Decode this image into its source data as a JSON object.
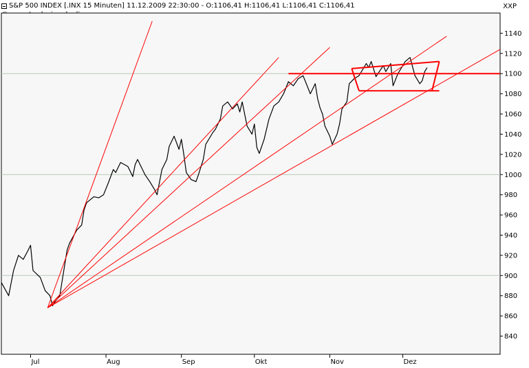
{
  "header": {
    "title": "S&P 500 INDEX [.INX  15 Minuten] 11.12.2009 22:30:00 - O:1106,41 H:1106,41 L:1106,41 C:1106,41",
    "copyright": "© www.tradesignalonline.com",
    "corner_label": "XXP"
  },
  "colors": {
    "price": "#000000",
    "trendlines": "#ff0000",
    "grid_highlight": "#b8c8b8",
    "plot_bg": "#f7f7f7"
  },
  "chart_data": {
    "type": "line",
    "title": "S&P 500 INDEX [.INX  15 Minuten] 11.12.2009 22:30:00 - O:1106,41 H:1106,41 L:1106,41 C:1106,41",
    "xlabel": "",
    "ylabel": "",
    "ylim": [
      822,
      1160
    ],
    "y_ticks": [
      840,
      860,
      880,
      900,
      920,
      940,
      960,
      980,
      1000,
      1020,
      1040,
      1060,
      1080,
      1100,
      1120,
      1140
    ],
    "highlight_levels": [
      900,
      1000,
      1100
    ],
    "x_ticks": [
      {
        "label": "Jul",
        "x": "2009-07-01"
      },
      {
        "label": "Aug",
        "x": "2009-08-01"
      },
      {
        "label": "Sep",
        "x": "2009-09-01"
      },
      {
        "label": "Okt",
        "x": "2009-10-01"
      },
      {
        "label": "Nov",
        "x": "2009-11-01"
      },
      {
        "label": "Dez",
        "x": "2009-12-01"
      }
    ],
    "xlim": [
      "2009-06-19",
      "2010-01-10"
    ],
    "series": [
      {
        "values": [
          [
            "2009-06-19",
            893
          ],
          [
            "2009-06-22",
            880
          ],
          [
            "2009-06-24",
            905
          ],
          [
            "2009-06-26",
            920
          ],
          [
            "2009-06-28",
            916
          ],
          [
            "2009-06-30",
            925
          ],
          [
            "2009-07-01",
            930
          ],
          [
            "2009-07-02",
            905
          ],
          [
            "2009-07-05",
            898
          ],
          [
            "2009-07-07",
            885
          ],
          [
            "2009-07-09",
            880
          ],
          [
            "2009-07-10",
            870
          ],
          [
            "2009-07-11",
            874
          ],
          [
            "2009-07-13",
            880
          ],
          [
            "2009-07-14",
            895
          ],
          [
            "2009-07-16",
            925
          ],
          [
            "2009-07-17",
            932
          ],
          [
            "2009-07-20",
            945
          ],
          [
            "2009-07-22",
            950
          ],
          [
            "2009-07-23",
            965
          ],
          [
            "2009-07-24",
            972
          ],
          [
            "2009-07-27",
            978
          ],
          [
            "2009-07-29",
            977
          ],
          [
            "2009-07-31",
            980
          ],
          [
            "2009-08-02",
            992
          ],
          [
            "2009-08-04",
            1005
          ],
          [
            "2009-08-05",
            1002
          ],
          [
            "2009-08-07",
            1012
          ],
          [
            "2009-08-10",
            1008
          ],
          [
            "2009-08-12",
            998
          ],
          [
            "2009-08-13",
            1010
          ],
          [
            "2009-08-14",
            1015
          ],
          [
            "2009-08-17",
            1000
          ],
          [
            "2009-08-19",
            993
          ],
          [
            "2009-08-21",
            985
          ],
          [
            "2009-08-22",
            980
          ],
          [
            "2009-08-24",
            1005
          ],
          [
            "2009-08-26",
            1015
          ],
          [
            "2009-08-27",
            1028
          ],
          [
            "2009-08-29",
            1038
          ],
          [
            "2009-08-31",
            1025
          ],
          [
            "2009-09-01",
            1035
          ],
          [
            "2009-09-02",
            1020
          ],
          [
            "2009-09-03",
            1002
          ],
          [
            "2009-09-05",
            995
          ],
          [
            "2009-09-07",
            993
          ],
          [
            "2009-09-08",
            1000
          ],
          [
            "2009-09-10",
            1015
          ],
          [
            "2009-09-11",
            1030
          ],
          [
            "2009-09-14",
            1042
          ],
          [
            "2009-09-15",
            1045
          ],
          [
            "2009-09-17",
            1055
          ],
          [
            "2009-09-18",
            1068
          ],
          [
            "2009-09-20",
            1072
          ],
          [
            "2009-09-22",
            1065
          ],
          [
            "2009-09-24",
            1070
          ],
          [
            "2009-09-25",
            1062
          ],
          [
            "2009-09-26",
            1072
          ],
          [
            "2009-09-28",
            1048
          ],
          [
            "2009-09-30",
            1040
          ],
          [
            "2009-10-01",
            1050
          ],
          [
            "2009-10-02",
            1027
          ],
          [
            "2009-10-03",
            1021
          ],
          [
            "2009-10-05",
            1035
          ],
          [
            "2009-10-07",
            1055
          ],
          [
            "2009-10-09",
            1068
          ],
          [
            "2009-10-11",
            1072
          ],
          [
            "2009-10-13",
            1080
          ],
          [
            "2009-10-15",
            1092
          ],
          [
            "2009-10-17",
            1088
          ],
          [
            "2009-10-19",
            1095
          ],
          [
            "2009-10-21",
            1098
          ],
          [
            "2009-10-22",
            1092
          ],
          [
            "2009-10-24",
            1080
          ],
          [
            "2009-10-26",
            1090
          ],
          [
            "2009-10-27",
            1075
          ],
          [
            "2009-10-28",
            1066
          ],
          [
            "2009-10-29",
            1060
          ],
          [
            "2009-10-30",
            1048
          ],
          [
            "2009-11-01",
            1038
          ],
          [
            "2009-11-02",
            1030
          ],
          [
            "2009-11-04",
            1040
          ],
          [
            "2009-11-05",
            1050
          ],
          [
            "2009-11-06",
            1065
          ],
          [
            "2009-11-08",
            1072
          ],
          [
            "2009-11-09",
            1090
          ],
          [
            "2009-11-11",
            1095
          ],
          [
            "2009-11-13",
            1098
          ],
          [
            "2009-11-16",
            1110
          ],
          [
            "2009-11-17",
            1106
          ],
          [
            "2009-11-18",
            1112
          ],
          [
            "2009-11-20",
            1097
          ],
          [
            "2009-11-23",
            1108
          ],
          [
            "2009-11-24",
            1102
          ],
          [
            "2009-11-26",
            1110
          ],
          [
            "2009-11-27",
            1088
          ],
          [
            "2009-11-29",
            1100
          ],
          [
            "2009-12-01",
            1108
          ],
          [
            "2009-12-02",
            1112
          ],
          [
            "2009-12-04",
            1116
          ],
          [
            "2009-12-06",
            1098
          ],
          [
            "2009-12-08",
            1090
          ],
          [
            "2009-12-09",
            1093
          ],
          [
            "2009-12-10",
            1102
          ],
          [
            "2009-12-11",
            1106
          ]
        ]
      }
    ],
    "drawn_lines": [
      {
        "name": "fan-1",
        "from": [
          "2009-07-08",
          868
        ],
        "to": [
          "2009-08-20",
          1152
        ]
      },
      {
        "name": "fan-2",
        "from": [
          "2009-07-08",
          868
        ],
        "to": [
          "2009-10-11",
          1116
        ]
      },
      {
        "name": "fan-3",
        "from": [
          "2009-07-08",
          868
        ],
        "to": [
          "2009-11-01",
          1126
        ]
      },
      {
        "name": "fan-4",
        "from": [
          "2009-07-08",
          868
        ],
        "to": [
          "2009-12-19",
          1137
        ]
      },
      {
        "name": "fan-5",
        "from": [
          "2009-07-08",
          868
        ],
        "to": [
          "2010-01-10",
          1124
        ]
      },
      {
        "name": "resistance-1100",
        "from": [
          "2009-10-15",
          1100
        ],
        "to": [
          "2010-01-10",
          1100
        ]
      },
      {
        "name": "box-top",
        "from": [
          "2009-11-10",
          1105
        ],
        "to": [
          "2009-12-16",
          1112
        ]
      },
      {
        "name": "box-bottom",
        "from": [
          "2009-11-13",
          1083
        ],
        "to": [
          "2009-12-16",
          1083
        ]
      },
      {
        "name": "box-left",
        "from": [
          "2009-11-10",
          1105
        ],
        "to": [
          "2009-11-13",
          1083
        ]
      },
      {
        "name": "box-right",
        "from": [
          "2009-12-16",
          1112
        ],
        "to": [
          "2009-12-13",
          1083
        ]
      }
    ]
  }
}
